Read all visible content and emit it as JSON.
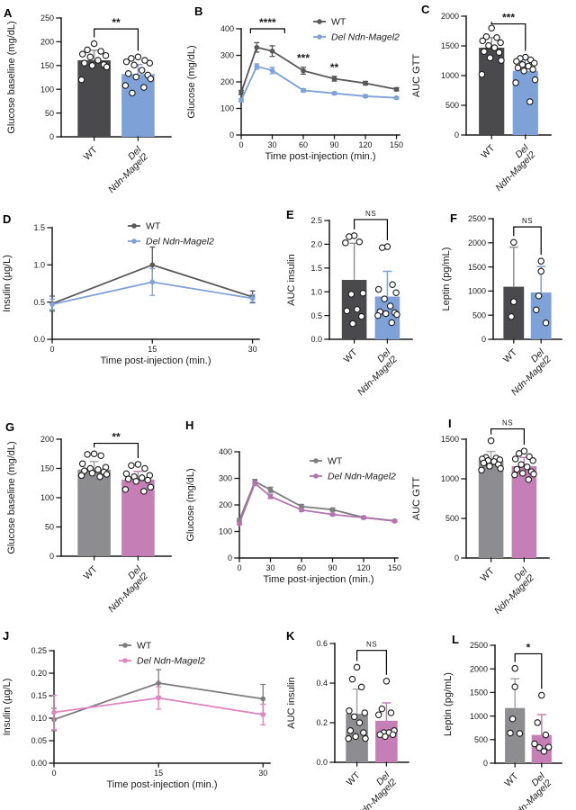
{
  "figure_title": "",
  "chart_data": [
    {
      "letter": "A",
      "type": "bar",
      "ylabel": "Glucose baseline (mg/dL)",
      "ylim": [
        0,
        250
      ],
      "yticks": [
        "0",
        "50",
        "100",
        "150",
        "200",
        "250"
      ],
      "groups": [
        {
          "label": "WT",
          "italic": false,
          "lines": [
            "WT"
          ],
          "color": "#4a4a4c",
          "err_color": "#919193",
          "mean": 161,
          "err": 21,
          "points": [
            196,
            183,
            180,
            174,
            171,
            168,
            161,
            155,
            152,
            150,
            147,
            120
          ]
        },
        {
          "label": "Del Ndn-Magel2",
          "italic": true,
          "lines": [
            "Del",
            "Ndn-Magel2"
          ],
          "color": "#7ea2d8",
          "err_color": "#7ea2d8",
          "mean": 132,
          "err": 20,
          "points": [
            168,
            165,
            161,
            158,
            155,
            151,
            140,
            133,
            130,
            126,
            122,
            108,
            104,
            92
          ]
        }
      ],
      "sig": {
        "label": "**",
        "y": 227
      }
    },
    {
      "letter": "B",
      "type": "line",
      "ylabel": "Glucose (mg/dL)",
      "xlabel": "Time post-injection (min.)",
      "ylim": [
        0,
        400
      ],
      "yticks": [
        "0",
        "100",
        "200",
        "300",
        "400"
      ],
      "xlim": [
        0,
        153
      ],
      "xticks": [
        "0",
        "30",
        "60",
        "90",
        "120",
        "150"
      ],
      "x": [
        0,
        15,
        30,
        60,
        90,
        120,
        150
      ],
      "series": [
        {
          "label": "WT",
          "italic": false,
          "color": "#58585b",
          "values": [
            160,
            330,
            316,
            242,
            212,
            195,
            172
          ],
          "errors": [
            8,
            18,
            20,
            13,
            9,
            7,
            6
          ]
        },
        {
          "label": "Del Ndn-Magel2",
          "italic": true,
          "color": "#7ea2d8",
          "values": [
            131,
            258,
            243,
            168,
            157,
            146,
            140
          ],
          "errors": [
            6,
            10,
            12,
            6,
            5,
            5,
            4
          ]
        }
      ],
      "annotations": [
        {
          "kind": "bracket",
          "x1": 9,
          "x2": 42,
          "y": 400,
          "label": "****"
        },
        {
          "kind": "stars",
          "x": 60,
          "y": 276,
          "label": "***"
        },
        {
          "kind": "stars",
          "x": 90,
          "y": 241,
          "label": "**"
        }
      ],
      "legend": true
    },
    {
      "letter": "C",
      "type": "bar",
      "ylabel": "AUC GTT",
      "ylim": [
        0,
        2000
      ],
      "yticks": [
        "0",
        "500",
        "1000",
        "1500",
        "2000"
      ],
      "groups": [
        {
          "label": "WT",
          "italic": false,
          "lines": [
            "WT"
          ],
          "color": "#4a4a4c",
          "err_color": "#919193",
          "mean": 1470,
          "err": 170,
          "points": [
            1800,
            1655,
            1640,
            1585,
            1555,
            1505,
            1470,
            1405,
            1390,
            1300,
            1255,
            1020
          ]
        },
        {
          "label": "Del Ndn-Magel2",
          "italic": true,
          "lines": [
            "Del",
            "Ndn-Magel2"
          ],
          "color": "#7ea2d8",
          "err_color": "#7ea2d8",
          "mean": 1080,
          "err": 190,
          "points": [
            1310,
            1290,
            1265,
            1240,
            1210,
            1185,
            1160,
            1130,
            1105,
            1080,
            930,
            880,
            560
          ]
        }
      ],
      "sig": {
        "label": "***",
        "y": 1870
      }
    },
    {
      "letter": "D",
      "type": "line",
      "ylabel": "Insulin (µg/L)",
      "xlabel": "Time post-injection (min.)",
      "ylim": [
        0,
        1.5
      ],
      "yticks": [
        "0.0",
        "0.5",
        "1.0",
        "1.5"
      ],
      "xlim": [
        0,
        31
      ],
      "xticks": [
        "0",
        "15",
        "30"
      ],
      "x": [
        0,
        15,
        30
      ],
      "series": [
        {
          "label": "WT",
          "italic": false,
          "color": "#58585b",
          "values": [
            0.48,
            1.0,
            0.57
          ],
          "errors": [
            0.1,
            0.24,
            0.08
          ]
        },
        {
          "label": "Del Ndn-Magel2",
          "italic": true,
          "color": "#7ea2d8",
          "values": [
            0.47,
            0.77,
            0.55
          ],
          "errors": [
            0.07,
            0.18,
            0.05
          ]
        }
      ],
      "annotations": [],
      "legend": true
    },
    {
      "letter": "E",
      "type": "bar",
      "ylabel": "AUC insulin",
      "ylim": [
        0,
        2.5
      ],
      "yticks": [
        "0.0",
        "0.5",
        "1.0",
        "1.5",
        "2.0",
        "2.5"
      ],
      "groups": [
        {
          "label": "WT",
          "italic": false,
          "lines": [
            "WT"
          ],
          "color": "#4a4a4c",
          "err_color": "#919193",
          "mean": 1.25,
          "err": 0.77,
          "points": [
            2.18,
            2.16,
            2.05,
            2.03,
            0.97,
            0.95,
            0.63,
            0.6,
            0.48,
            0.33
          ]
        },
        {
          "label": "Del Ndn-Magel2",
          "italic": true,
          "lines": [
            "Del",
            "Ndn-Magel2"
          ],
          "color": "#7ea2d8",
          "err_color": "#7ea2d8",
          "mean": 0.9,
          "err": 0.53,
          "points": [
            1.95,
            1.93,
            1.15,
            1.05,
            0.98,
            0.85,
            0.7,
            0.58,
            0.56,
            0.54,
            0.52,
            0.5,
            0.35
          ]
        }
      ],
      "sig": {
        "label": "NS",
        "y": 2.52
      }
    },
    {
      "letter": "F",
      "type": "bar",
      "ylabel": "Leptin (pg/mL)",
      "ylim": [
        0,
        2500
      ],
      "yticks": [
        "0",
        "500",
        "1000",
        "1500",
        "2000",
        "2500"
      ],
      "groups": [
        {
          "label": "WT",
          "italic": false,
          "lines": [
            "WT"
          ],
          "color": "#4a4a4c",
          "err_color": "#919193",
          "mean": 1090,
          "err": 820,
          "points": [
            2010,
            780,
            470
          ]
        },
        {
          "label": "Del Ndn-Magel2",
          "italic": true,
          "lines": [
            "Del",
            "Ndn-Magel2"
          ],
          "color": "#7ea2d8",
          "err_color": "#7ea2d8",
          "mean": 970,
          "err": 540,
          "points": [
            1620,
            1410,
            900,
            610,
            340
          ]
        }
      ],
      "sig": {
        "label": "NS",
        "y": 2330
      }
    },
    {
      "letter": "G",
      "type": "bar",
      "ylabel": "Glucose baseline (mg/dL)",
      "ylim": [
        0,
        200
      ],
      "yticks": [
        "0",
        "50",
        "100",
        "150",
        "200"
      ],
      "groups": [
        {
          "label": "WT",
          "italic": false,
          "lines": [
            "WT"
          ],
          "color": "#8d8d8f",
          "err_color": "#a8a8aa",
          "mean": 148,
          "err": 14,
          "points": [
            175,
            174,
            172,
            158,
            152,
            150,
            148,
            146,
            144,
            142,
            140,
            138,
            136
          ]
        },
        {
          "label": "Del Ndn-Magel2",
          "italic": true,
          "lines": [
            "Del",
            "Ndn-Magel2"
          ],
          "color": "#c67fb6",
          "err_color": "#c67fb6",
          "mean": 131,
          "err": 14,
          "points": [
            157,
            155,
            150,
            141,
            138,
            136,
            134,
            132,
            130,
            128,
            118,
            114,
            111
          ]
        }
      ],
      "sig": {
        "label": "**",
        "y": 193
      }
    },
    {
      "letter": "H",
      "type": "line",
      "ylabel": "Glucose (mg/dL)",
      "xlabel": "Time post-injection (min.)",
      "ylim": [
        0,
        400
      ],
      "yticks": [
        "0",
        "100",
        "200",
        "300",
        "400"
      ],
      "xlim": [
        0,
        153
      ],
      "xticks": [
        "0",
        "30",
        "60",
        "90",
        "120",
        "150"
      ],
      "x": [
        0,
        15,
        30,
        60,
        90,
        120,
        150
      ],
      "series": [
        {
          "label": "WT",
          "italic": false,
          "color": "#7d7d80",
          "values": [
            143,
            288,
            257,
            194,
            182,
            153,
            140
          ],
          "errors": [
            6,
            8,
            10,
            8,
            6,
            4,
            4
          ]
        },
        {
          "label": "Del Ndn-Magel2",
          "italic": true,
          "color": "#b273af",
          "values": [
            130,
            281,
            232,
            181,
            164,
            152,
            139
          ],
          "errors": [
            5,
            8,
            8,
            5,
            5,
            4,
            4
          ]
        }
      ],
      "annotations": [],
      "legend": true
    },
    {
      "letter": "I",
      "type": "bar",
      "ylabel": "AUC GTT",
      "ylim": [
        0,
        1500
      ],
      "yticks": [
        "0",
        "500",
        "1000",
        "1500"
      ],
      "groups": [
        {
          "label": "WT",
          "italic": false,
          "lines": [
            "WT"
          ],
          "color": "#8d8d8f",
          "err_color": "#a8a8aa",
          "mean": 1230,
          "err": 115,
          "points": [
            1480,
            1270,
            1262,
            1250,
            1240,
            1230,
            1218,
            1200,
            1180,
            1160,
            1130,
            1110
          ]
        },
        {
          "label": "Del Ndn-Magel2",
          "italic": true,
          "lines": [
            "Del",
            "Ndn-Magel2"
          ],
          "color": "#c67fb6",
          "err_color": "#c67fb6",
          "mean": 1160,
          "err": 110,
          "points": [
            1350,
            1320,
            1280,
            1250,
            1230,
            1180,
            1150,
            1120,
            1090,
            1070,
            1060,
            1050,
            990
          ]
        }
      ],
      "sig": {
        "label": "NS",
        "y": 1630
      }
    },
    {
      "letter": "J",
      "type": "line",
      "ylabel": "Insulin (µg/L)",
      "xlabel": "Time post-injection (min.)",
      "ylim": [
        0,
        0.25
      ],
      "yticks": [
        "0.00",
        "0.05",
        "0.10",
        "0.15",
        "0.20",
        "0.25"
      ],
      "xlim": [
        0,
        31
      ],
      "xticks": [
        "0",
        "15",
        "30"
      ],
      "x": [
        0,
        15,
        30
      ],
      "series": [
        {
          "label": "WT",
          "italic": false,
          "color": "#7d7d80",
          "values": [
            0.097,
            0.178,
            0.143
          ],
          "errors": [
            0.025,
            0.03,
            0.032
          ]
        },
        {
          "label": "Del Ndn-Magel2",
          "italic": true,
          "color": "#e083c0",
          "values": [
            0.113,
            0.145,
            0.108
          ],
          "errors": [
            0.038,
            0.025,
            0.023
          ]
        }
      ],
      "annotations": [],
      "legend": true
    },
    {
      "letter": "K",
      "type": "bar",
      "ylabel": "AUC insulin",
      "ylim": [
        0,
        0.6
      ],
      "yticks": [
        "0.0",
        "0.2",
        "0.4",
        "0.6"
      ],
      "groups": [
        {
          "label": "WT",
          "italic": false,
          "lines": [
            "WT"
          ],
          "color": "#8d8d8f",
          "err_color": "#a8a8aa",
          "mean": 0.245,
          "err": 0.125,
          "points": [
            0.48,
            0.42,
            0.38,
            0.26,
            0.25,
            0.23,
            0.2,
            0.16,
            0.15,
            0.13,
            0.12,
            0.12
          ]
        },
        {
          "label": "Del Ndn-Magel2",
          "italic": true,
          "lines": [
            "Del",
            "Ndn-Magel2"
          ],
          "color": "#c67fb6",
          "err_color": "#c67fb6",
          "mean": 0.21,
          "err": 0.09,
          "points": [
            0.41,
            0.27,
            0.25,
            0.24,
            0.16,
            0.15,
            0.15,
            0.14,
            0.14,
            0.13
          ]
        }
      ],
      "sig": {
        "label": "NS",
        "y": 0.565
      }
    },
    {
      "letter": "L",
      "type": "bar",
      "ylabel": "Leptin (pg/mL)",
      "ylim": [
        0,
        2500
      ],
      "yticks": [
        "0",
        "500",
        "1000",
        "1500",
        "2000",
        "2500"
      ],
      "groups": [
        {
          "label": "WT",
          "italic": false,
          "lines": [
            "WT"
          ],
          "color": "#8d8d8f",
          "err_color": "#a8a8aa",
          "mean": 1170,
          "err": 620,
          "points": [
            2010,
            1620,
            940,
            640,
            630
          ]
        },
        {
          "label": "Del Ndn-Magel2",
          "italic": true,
          "lines": [
            "Del",
            "Ndn-Magel2"
          ],
          "color": "#c67fb6",
          "err_color": "#c67fb6",
          "mean": 600,
          "err": 430,
          "points": [
            1440,
            860,
            600,
            410,
            340,
            330,
            250
          ]
        }
      ],
      "sig": {
        "label": "*",
        "y": 2320
      }
    }
  ]
}
